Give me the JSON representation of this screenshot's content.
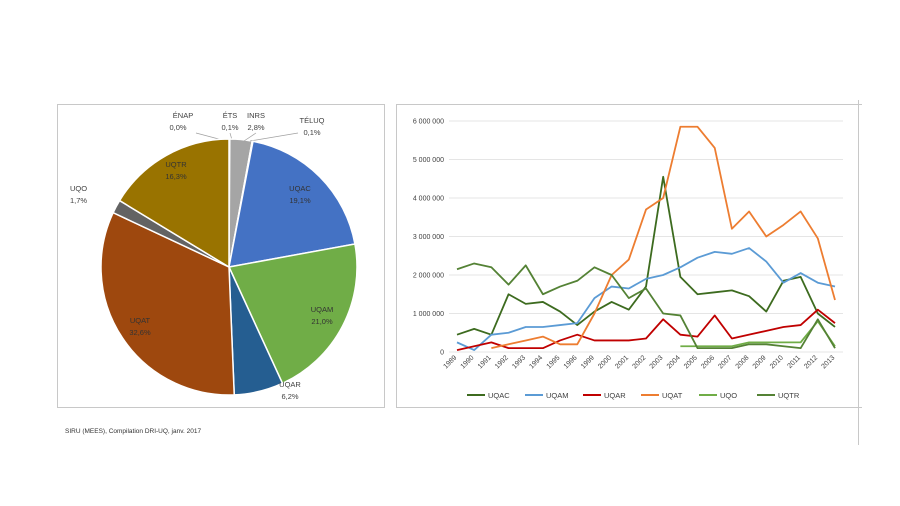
{
  "source_note": "SIRU (MEES), Compilation DRI-UQ, janv. 2017",
  "chart_data": [
    {
      "type": "pie",
      "slices": [
        {
          "name": "ÉNAP",
          "label": "ÉNAP",
          "value_label": "0,0%",
          "value": 0.0,
          "color": "#a5a5a5"
        },
        {
          "name": "ÉTS",
          "label": "ÉTS",
          "value_label": "0,1%",
          "value": 0.1,
          "color": "#a5a5a5"
        },
        {
          "name": "INRS",
          "label": "INRS",
          "value_label": "2,8%",
          "value": 2.8,
          "color": "#a5a5a5"
        },
        {
          "name": "TÉLUQ",
          "label": "TÉLUQ",
          "value_label": "0,1%",
          "value": 0.1,
          "color": "#a5a5a5"
        },
        {
          "name": "UQAC",
          "label": "UQAC",
          "value_label": "19,1%",
          "value": 19.1,
          "color": "#4472c4"
        },
        {
          "name": "UQAM",
          "label": "UQAM",
          "value_label": "21,0%",
          "value": 21.0,
          "color": "#70ad47"
        },
        {
          "name": "UQAR",
          "label": "UQAR",
          "value_label": "6,2%",
          "value": 6.2,
          "color": "#255e91"
        },
        {
          "name": "UQAT",
          "label": "UQAT",
          "value_label": "32,6%",
          "value": 32.6,
          "color": "#9e480e"
        },
        {
          "name": "UQO",
          "label": "UQO",
          "value_label": "1,7%",
          "value": 1.7,
          "color": "#636363"
        },
        {
          "name": "UQTR",
          "label": "UQTR",
          "value_label": "16,3%",
          "value": 16.3,
          "color": "#997300"
        }
      ]
    },
    {
      "type": "line",
      "x": [
        "1989",
        "1990",
        "1991",
        "1992",
        "1993",
        "1994",
        "1995",
        "1996",
        "1999",
        "2000",
        "2001",
        "2002",
        "2003",
        "2004",
        "2005",
        "2006",
        "2007",
        "2008",
        "2009",
        "2010",
        "2011",
        "2012",
        "2013"
      ],
      "ylim": [
        0,
        6000000
      ],
      "yticks": [
        "0",
        "1 000 000",
        "2 000 000",
        "3 000 000",
        "4 000 000",
        "5 000 000",
        "6 000 000"
      ],
      "ytick_values": [
        0,
        1000000,
        2000000,
        3000000,
        4000000,
        5000000,
        6000000
      ],
      "grid": true,
      "legend": "bottom",
      "series": [
        {
          "name": "UQAC",
          "color": "#3d6b1f",
          "values": [
            450000,
            600000,
            450000,
            1500000,
            1250000,
            1300000,
            1050000,
            700000,
            1050000,
            1300000,
            1100000,
            1700000,
            4550000,
            1950000,
            1500000,
            1550000,
            1600000,
            1450000,
            1050000,
            1850000,
            1950000,
            1000000,
            650000
          ]
        },
        {
          "name": "UQAM",
          "color": "#5b9bd5",
          "values": [
            250000,
            50000,
            450000,
            500000,
            650000,
            650000,
            700000,
            750000,
            1400000,
            1700000,
            1650000,
            1900000,
            2000000,
            2200000,
            2450000,
            2600000,
            2550000,
            2700000,
            2350000,
            1800000,
            2050000,
            1800000,
            1700000
          ]
        },
        {
          "name": "UQAR",
          "color": "#c00000",
          "values": [
            50000,
            150000,
            250000,
            100000,
            100000,
            100000,
            300000,
            450000,
            300000,
            300000,
            300000,
            350000,
            850000,
            450000,
            400000,
            950000,
            350000,
            450000,
            550000,
            650000,
            700000,
            1100000,
            750000
          ]
        },
        {
          "name": "UQAT",
          "color": "#ed7d31",
          "values": [
            null,
            null,
            100000,
            200000,
            300000,
            400000,
            200000,
            200000,
            1000000,
            2000000,
            2400000,
            3700000,
            4000000,
            5850000,
            5850000,
            5300000,
            3200000,
            3650000,
            3000000,
            3300000,
            3650000,
            2950000,
            1350000
          ]
        },
        {
          "name": "UQO",
          "color": "#70ad47",
          "values": [
            null,
            null,
            null,
            null,
            null,
            null,
            null,
            null,
            null,
            null,
            null,
            null,
            null,
            150000,
            150000,
            150000,
            150000,
            250000,
            250000,
            250000,
            250000,
            800000,
            150000
          ]
        },
        {
          "name": "UQTR",
          "color": "#548235",
          "values": [
            2150000,
            2300000,
            2200000,
            1750000,
            2250000,
            1500000,
            1700000,
            1850000,
            2200000,
            2000000,
            1400000,
            1650000,
            1000000,
            950000,
            100000,
            100000,
            100000,
            200000,
            200000,
            150000,
            100000,
            850000,
            100000
          ]
        }
      ]
    }
  ]
}
